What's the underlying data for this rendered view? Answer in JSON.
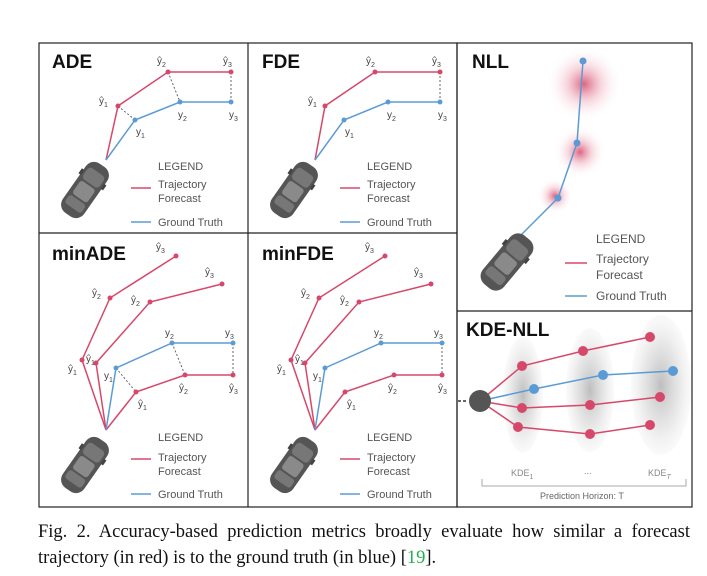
{
  "figure": {
    "panels": {
      "ade": "ADE",
      "fde": "FDE",
      "nll": "NLL",
      "minade": "minADE",
      "minfde": "minFDE",
      "kdenll": "KDE-NLL"
    },
    "legend": {
      "title": "LEGEND",
      "forecast_line1": "Trajectory",
      "forecast_line2": "Forecast",
      "ground_truth": "Ground Truth"
    },
    "labels": {
      "yhat1": "ŷ",
      "yhat2": "ŷ",
      "yhat3": "ŷ",
      "y1": "y",
      "y2": "y",
      "y3": "y",
      "sub1": "1",
      "sub2": "2",
      "sub3": "3"
    },
    "kde": {
      "kde1": "KDE",
      "kde1_sub": "1",
      "dots": "...",
      "kdeT": "KDE",
      "kdeT_sub": "T",
      "horizon": "Prediction Horizon: T"
    }
  },
  "caption": {
    "prefix": "Fig. 2.   Accuracy-based prediction metrics broadly evaluate how similar a forecast trajectory (in red) is to the ground truth (in blue) [",
    "ref": "19",
    "suffix": "]."
  },
  "colors": {
    "forecast": "#d6486a",
    "ground_truth": "#5b9bd5",
    "car": "#555555",
    "border": "#222222"
  }
}
